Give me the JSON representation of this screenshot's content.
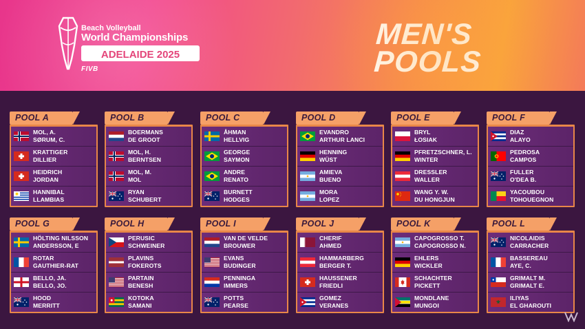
{
  "event": {
    "subtitle": "Beach Volleyball",
    "title": "World Championships",
    "location": "ADELAIDE 2025",
    "brand": "FIVB"
  },
  "heading": {
    "line1": "MEN'S",
    "line2": "POOLS"
  },
  "colors": {
    "banner_start": "#e8358b",
    "banner_end": "#f9a33c",
    "pool_tag": "#f5a067",
    "pool_border": "#e98748",
    "row_bg": "#6c2c7a",
    "page_bg": "#3b1640"
  },
  "pools": [
    {
      "label": "POOL A",
      "teams": [
        {
          "flag": "NOR",
          "line1": "MOL, A.",
          "line2": "SØRUM, C."
        },
        {
          "flag": "SUI",
          "line1": "KRATTIGER",
          "line2": "DILLIER"
        },
        {
          "flag": "SUI",
          "line1": "HEIDRICH",
          "line2": "JORDAN"
        },
        {
          "flag": "URU",
          "line1": "HANNIBAL",
          "line2": "LLAMBIAS"
        }
      ]
    },
    {
      "label": "POOL B",
      "teams": [
        {
          "flag": "NED",
          "line1": "BOERMANS",
          "line2": "DE GROOT"
        },
        {
          "flag": "NOR",
          "line1": "MOL, H.",
          "line2": "BERNTSEN"
        },
        {
          "flag": "NOR",
          "line1": "MOL, M.",
          "line2": "MOL"
        },
        {
          "flag": "AUS",
          "line1": "RYAN",
          "line2": "SCHUBERT"
        }
      ]
    },
    {
      "label": "POOL C",
      "teams": [
        {
          "flag": "SWE",
          "line1": "ÅHMAN",
          "line2": "HELLVIG"
        },
        {
          "flag": "BRA",
          "line1": "GEORGE",
          "line2": "SAYMON"
        },
        {
          "flag": "BRA",
          "line1": "ANDRE",
          "line2": "RENATO"
        },
        {
          "flag": "AUS",
          "line1": "BURNETT",
          "line2": "HODGES"
        }
      ]
    },
    {
      "label": "POOL D",
      "teams": [
        {
          "flag": "BRA",
          "line1": "EVANDRO",
          "line2": "ARTHUR LANCI"
        },
        {
          "flag": "GER",
          "line1": "HENNING",
          "line2": "WÜST"
        },
        {
          "flag": "ARG",
          "line1": "AMIEVA",
          "line2": "BUENO"
        },
        {
          "flag": "ARG",
          "line1": "MORA",
          "line2": "LOPEZ"
        }
      ]
    },
    {
      "label": "POOL E",
      "teams": [
        {
          "flag": "POL",
          "line1": "BRYL",
          "line2": "ŁOSIAK"
        },
        {
          "flag": "GER",
          "line1": "PFRETZSCHNER, L.",
          "line2": "WINTER"
        },
        {
          "flag": "AUT",
          "line1": "DRESSLER",
          "line2": "WALLER"
        },
        {
          "flag": "CHN",
          "line1": "WANG Y. W.",
          "line2": "DU HONGJUN"
        }
      ]
    },
    {
      "label": "POOL F",
      "teams": [
        {
          "flag": "CUB",
          "line1": "DIAZ",
          "line2": "ALAYO"
        },
        {
          "flag": "POR",
          "line1": "PEDROSA",
          "line2": "CAMPOS"
        },
        {
          "flag": "AUS",
          "line1": "FULLER",
          "line2": "O'DEA B."
        },
        {
          "flag": "BEN",
          "line1": "YACOUBOU",
          "line2": "TOHOUEGNON"
        }
      ]
    },
    {
      "label": "POOL G",
      "teams": [
        {
          "flag": "SWE",
          "line1": "HÖLTING NILSSON",
          "line2": "ANDERSSON, E"
        },
        {
          "flag": "FRA",
          "line1": "ROTAR",
          "line2": "GAUTHIER-RAT"
        },
        {
          "flag": "ENG",
          "line1": "BELLO, JA.",
          "line2": "BELLO, JO."
        },
        {
          "flag": "AUS",
          "line1": "HOOD",
          "line2": "MERRITT"
        }
      ]
    },
    {
      "label": "POOL H",
      "teams": [
        {
          "flag": "CZE",
          "line1": "PERUSIC",
          "line2": "SCHWEINER"
        },
        {
          "flag": "LAT",
          "line1": "PLAVINS",
          "line2": "FOKEROTS"
        },
        {
          "flag": "USA",
          "line1": "PARTAIN",
          "line2": "BENESH"
        },
        {
          "flag": "TOG",
          "line1": "KOTOKA",
          "line2": "SAMANI"
        }
      ]
    },
    {
      "label": "POOL I",
      "teams": [
        {
          "flag": "NED",
          "line1": "VAN DE VELDE",
          "line2": "BROUWER"
        },
        {
          "flag": "USA",
          "line1": "EVANS",
          "line2": "BUDINGER"
        },
        {
          "flag": "PAR",
          "line1": "PENNINGA",
          "line2": "IMMERS"
        },
        {
          "flag": "AUS",
          "line1": "POTTS",
          "line2": "PEARSE"
        }
      ]
    },
    {
      "label": "POOL J",
      "teams": [
        {
          "flag": "QAT",
          "line1": "CHERIF",
          "line2": "AHMED"
        },
        {
          "flag": "AUT",
          "line1": "HAMMARBERG",
          "line2": "BERGER T."
        },
        {
          "flag": "SUI",
          "line1": "HAUSSENER",
          "line2": "FRIEDLI"
        },
        {
          "flag": "CUB",
          "line1": "GOMEZ",
          "line2": "VERANES"
        }
      ]
    },
    {
      "label": "POOL K",
      "teams": [
        {
          "flag": "ARG",
          "line1": "CAPOGROSSO T.",
          "line2": "CAPOGROSSO N."
        },
        {
          "flag": "GER",
          "line1": "EHLERS",
          "line2": "WICKLER"
        },
        {
          "flag": "CAN",
          "line1": "SCHACHTER",
          "line2": "PICKETT"
        },
        {
          "flag": "MOZ",
          "line1": "MONDLANE",
          "line2": "MUNGOI"
        }
      ]
    },
    {
      "label": "POOL L",
      "teams": [
        {
          "flag": "AUS",
          "line1": "NICOLAIDIS",
          "line2": "CARRACHER"
        },
        {
          "flag": "FRA",
          "line1": "BASSEREAU",
          "line2": "AYE, C."
        },
        {
          "flag": "CHI",
          "line1": "GRIMALT M.",
          "line2": "GRIMALT E."
        },
        {
          "flag": "MAR",
          "line1": "ILIYAS",
          "line2": "EL GHAROUTI"
        }
      ]
    }
  ]
}
